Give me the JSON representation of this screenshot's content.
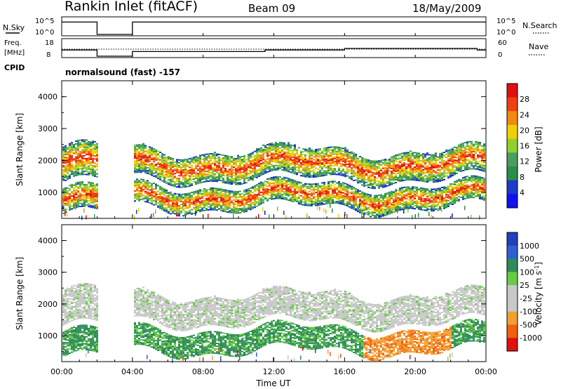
{
  "header": {
    "station": "Rankin Inlet (fitACF)",
    "beam": "Beam 09",
    "date": "18/May/2009"
  },
  "nsky_panel": {
    "left_label": "N.Sky",
    "left_ticks": [
      "10^5",
      "10^0"
    ],
    "right_label": "N.Search",
    "right_ticks": [
      "10^5",
      "10^0"
    ]
  },
  "freq_panel": {
    "left_label_line1": "Freq.",
    "left_label_line2": "[MHz]",
    "left_ticks": [
      "18",
      "8"
    ],
    "right_label": "Nave",
    "right_ticks": [
      "60",
      "0"
    ]
  },
  "cpid": {
    "label": "CPID",
    "value": "normalsound (fast) -157"
  },
  "colors": {
    "power_scale": [
      "#1010f0",
      "#1a3cc8",
      "#2a8f4a",
      "#4a9e5f",
      "#8ed12c",
      "#f0d000",
      "#f28a10",
      "#f04010",
      "#e01010"
    ],
    "velocity_scale": [
      "#2040c0",
      "#3060d0",
      "#2e8b57",
      "#66cc44",
      "#c8c8c8",
      "#c8c8c8",
      "#f0a030",
      "#f06010",
      "#e01010"
    ],
    "panel_frame": "#000000"
  },
  "chart_data": [
    {
      "type": "line",
      "title": "N.Sky / N.Search",
      "x_unit": "hours UT",
      "x": [
        0,
        1.9,
        2.0,
        3.9,
        4.0,
        6,
        8,
        10,
        12,
        14,
        16,
        18,
        20,
        22,
        24
      ],
      "series": [
        {
          "name": "N.Sky",
          "values": [
            4,
            4,
            0,
            0,
            4,
            4,
            4,
            4,
            4,
            4,
            4,
            4,
            4,
            4,
            4
          ]
        }
      ]
    },
    {
      "type": "line",
      "title": "Freq. / Nave",
      "x_unit": "hours UT",
      "x": [
        0,
        1.9,
        2.0,
        3.9,
        4.0,
        6,
        8,
        10,
        11.5,
        12,
        14,
        16,
        18,
        20,
        22,
        23.5,
        24
      ],
      "series": [
        {
          "name": "Freq. [MHz]",
          "values": [
            12,
            12,
            8,
            8,
            11,
            11,
            11,
            11,
            12,
            12,
            12,
            13,
            13,
            13,
            13,
            12,
            12
          ]
        }
      ]
    },
    {
      "type": "heatmap",
      "title": "Power [dB]",
      "xlabel": "",
      "ylabel": "Slant Range [km]",
      "xlim": [
        0,
        24
      ],
      "ylim": [
        180,
        4500
      ],
      "x_ticks": [
        "00:00",
        "04:00",
        "08:00",
        "12:00",
        "16:00",
        "20:00",
        "00:00"
      ],
      "y_ticks": [
        "1000",
        "2000",
        "3000",
        "4000"
      ],
      "colorbar": {
        "label": "Power [dB]",
        "ticks": [
          "4",
          "8",
          "12",
          "16",
          "20",
          "24",
          "28"
        ],
        "range": [
          0,
          30
        ]
      },
      "data_gap_ut": [
        2.0,
        4.0
      ],
      "echo_bands_km": [
        {
          "ut": [
            0,
            2
          ],
          "range": [
            1300,
            2400
          ]
        },
        {
          "ut": [
            0,
            2
          ],
          "range": [
            300,
            1100
          ]
        },
        {
          "ut": [
            4,
            24
          ],
          "range": [
            1400,
            2300
          ]
        },
        {
          "ut": [
            4,
            24
          ],
          "range": [
            500,
            1200
          ]
        }
      ]
    },
    {
      "type": "heatmap",
      "title": "Velocity [m s^-1]",
      "xlabel": "Time UT",
      "ylabel": "Slant Range [km]",
      "xlim": [
        0,
        24
      ],
      "ylim": [
        180,
        4500
      ],
      "x_ticks": [
        "00:00",
        "04:00",
        "08:00",
        "12:00",
        "16:00",
        "20:00",
        "00:00"
      ],
      "y_ticks": [
        "1000",
        "2000",
        "3000",
        "4000"
      ],
      "colorbar": {
        "label": "Velocity [m s^-1]",
        "ticks": [
          "1000",
          "500",
          "100",
          "25",
          "-25",
          "-100",
          "-500",
          "-1000"
        ]
      },
      "data_gap_ut": [
        2.0,
        4.0
      ]
    }
  ]
}
